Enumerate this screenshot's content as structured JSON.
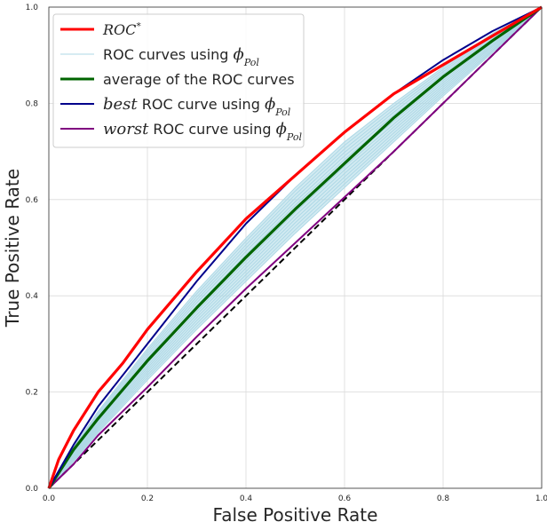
{
  "chart_data": {
    "type": "line",
    "title": "",
    "xlabel": "False Positive Rate",
    "ylabel": "True Positive Rate",
    "xlim": [
      0,
      1
    ],
    "ylim": [
      0,
      1
    ],
    "xticks": [
      "0.0",
      "0.2",
      "0.4",
      "0.6",
      "0.8",
      "1.0"
    ],
    "yticks": [
      "0.0",
      "0.2",
      "0.4",
      "0.6",
      "0.8",
      "1.0"
    ],
    "grid": true,
    "legend_position": "top-left",
    "legend": [
      {
        "key": "roc_star",
        "label": "ROC",
        "superscript": "*",
        "color": "#ff0000"
      },
      {
        "key": "roc_curves",
        "prefix": "ROC curves using ",
        "phi": "ϕ",
        "sub": "Pol",
        "color": "#add8e6"
      },
      {
        "key": "average",
        "label": "average of the ROC curves",
        "color": "#006400"
      },
      {
        "key": "best",
        "italic": "best",
        "prefix": " ROC curve using ",
        "phi": "ϕ",
        "sub": "Pol",
        "color": "#00008b"
      },
      {
        "key": "worst",
        "italic": "worst",
        "prefix": " ROC curve using ",
        "phi": "ϕ",
        "sub": "Pol",
        "color": "#800080"
      }
    ],
    "series": [
      {
        "name": "ROC*",
        "color": "#ff0000",
        "x": [
          0,
          0.02,
          0.05,
          0.1,
          0.15,
          0.2,
          0.3,
          0.4,
          0.5,
          0.6,
          0.7,
          0.8,
          0.9,
          0.95,
          1.0
        ],
        "y": [
          0,
          0.06,
          0.12,
          0.2,
          0.26,
          0.33,
          0.45,
          0.56,
          0.65,
          0.74,
          0.82,
          0.88,
          0.94,
          0.97,
          1.0
        ]
      },
      {
        "name": "average of the ROC curves",
        "color": "#006400",
        "x": [
          0,
          0.05,
          0.1,
          0.2,
          0.3,
          0.4,
          0.5,
          0.6,
          0.7,
          0.8,
          0.9,
          1.0
        ],
        "y": [
          0,
          0.08,
          0.145,
          0.265,
          0.375,
          0.48,
          0.58,
          0.675,
          0.77,
          0.855,
          0.93,
          1.0
        ]
      },
      {
        "name": "best ROC curve using phi_Pol",
        "color": "#00008b",
        "x": [
          0,
          0.05,
          0.1,
          0.2,
          0.3,
          0.4,
          0.5,
          0.6,
          0.7,
          0.8,
          0.9,
          1.0
        ],
        "y": [
          0,
          0.09,
          0.17,
          0.3,
          0.43,
          0.55,
          0.65,
          0.74,
          0.82,
          0.89,
          0.95,
          1.0
        ]
      },
      {
        "name": "worst ROC curve using phi_Pol",
        "color": "#800080",
        "x": [
          0,
          0.05,
          0.1,
          0.2,
          0.3,
          0.4,
          0.5,
          0.6,
          0.7,
          0.8,
          0.9,
          1.0
        ],
        "y": [
          0,
          0.05,
          0.11,
          0.21,
          0.315,
          0.415,
          0.51,
          0.605,
          0.7,
          0.8,
          0.9,
          1.0
        ]
      },
      {
        "name": "chance",
        "color": "#000000",
        "dashed": true,
        "x": [
          0,
          1
        ],
        "y": [
          0,
          1
        ]
      }
    ],
    "band": {
      "name": "ROC curves using phi_Pol",
      "color": "#add8e6",
      "x": [
        0,
        0.05,
        0.1,
        0.2,
        0.3,
        0.4,
        0.5,
        0.6,
        0.7,
        0.8,
        0.9,
        1.0
      ],
      "lower": [
        0,
        0.055,
        0.115,
        0.225,
        0.33,
        0.43,
        0.53,
        0.625,
        0.72,
        0.815,
        0.905,
        1.0
      ],
      "upper": [
        0,
        0.085,
        0.16,
        0.29,
        0.41,
        0.52,
        0.625,
        0.72,
        0.8,
        0.875,
        0.945,
        1.0
      ],
      "count": 14
    }
  }
}
